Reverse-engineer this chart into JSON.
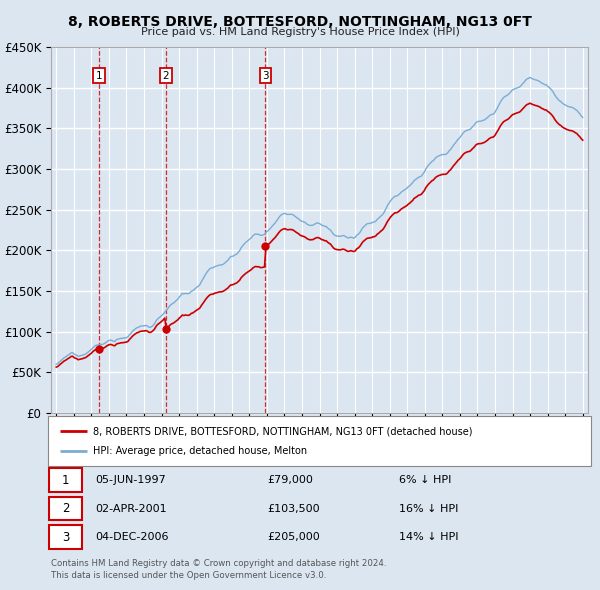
{
  "title": "8, ROBERTS DRIVE, BOTTESFORD, NOTTINGHAM, NG13 0FT",
  "subtitle": "Price paid vs. HM Land Registry's House Price Index (HPI)",
  "sale_dates": [
    "05-JUN-1997",
    "02-APR-2001",
    "04-DEC-2006"
  ],
  "sale_years": [
    1997.44,
    2001.25,
    2006.92
  ],
  "sale_prices": [
    79000,
    103500,
    205000
  ],
  "sale_labels": [
    "1",
    "2",
    "3"
  ],
  "sale_pct": [
    "6%",
    "16%",
    "14%"
  ],
  "legend_line1": "8, ROBERTS DRIVE, BOTTESFORD, NOTTINGHAM, NG13 0FT (detached house)",
  "legend_line2": "HPI: Average price, detached house, Melton",
  "footer1": "Contains HM Land Registry data © Crown copyright and database right 2024.",
  "footer2": "This data is licensed under the Open Government Licence v3.0.",
  "red_color": "#cc0000",
  "blue_color": "#7aadd4",
  "bg_color": "#dce6f1",
  "plot_bg": "#dce6f1",
  "grid_color": "#ffffff",
  "ylim": [
    0,
    450000
  ],
  "xlim": [
    1994.7,
    2025.3
  ],
  "yticks": [
    0,
    50000,
    100000,
    150000,
    200000,
    250000,
    300000,
    350000,
    400000,
    450000
  ],
  "ytick_labels": [
    "£0",
    "£50K",
    "£100K",
    "£150K",
    "£200K",
    "£250K",
    "£300K",
    "£350K",
    "£400K",
    "£450K"
  ],
  "xticks": [
    1995,
    1996,
    1997,
    1998,
    1999,
    2000,
    2001,
    2002,
    2003,
    2004,
    2005,
    2006,
    2007,
    2008,
    2009,
    2010,
    2011,
    2012,
    2013,
    2014,
    2015,
    2016,
    2017,
    2018,
    2019,
    2020,
    2021,
    2022,
    2023,
    2024,
    2025
  ]
}
